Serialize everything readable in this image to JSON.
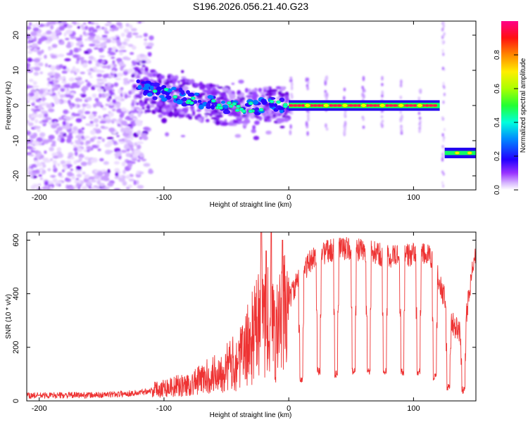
{
  "figure": {
    "title": "S196.2026.056.21.40.G23"
  },
  "chart_data": [
    {
      "type": "heatmap",
      "panel": "top",
      "title": "S196.2026.056.21.40.G23",
      "xlabel": "Height of straight line (km)",
      "ylabel": "Frequency (Hz)",
      "xlim": [
        -210,
        150
      ],
      "ylim": [
        -24,
        24
      ],
      "xticks": [
        -200,
        -100,
        0,
        100
      ],
      "yticks": [
        -20,
        -10,
        0,
        10,
        20
      ],
      "colorbar": {
        "label": "Normalized spectral amplitude",
        "range": [
          0.0,
          1.0
        ],
        "ticks": [
          0.0,
          0.2,
          0.4,
          0.6,
          0.8
        ],
        "colormap": [
          "#ffffff",
          "#e6ccff",
          "#b266ff",
          "#7a00ff",
          "#2200ff",
          "#0099ff",
          "#00ffcc",
          "#33ff33",
          "#ccff00",
          "#ffcc00",
          "#ff6600",
          "#ff0033",
          "#ff0077"
        ]
      },
      "ridge": [
        {
          "x": -120,
          "y": 5
        },
        {
          "x": -100,
          "y": 3.5
        },
        {
          "x": -80,
          "y": 2
        },
        {
          "x": -60,
          "y": 0.5
        },
        {
          "x": -40,
          "y": -1
        },
        {
          "x": -20,
          "y": 0
        },
        {
          "x": 0,
          "y": 0.5
        },
        {
          "x": 120,
          "y": 0
        },
        {
          "x": 125,
          "y": -13.5
        },
        {
          "x": 150,
          "y": -13.5
        }
      ],
      "tone_peaks_x": [
        15,
        30,
        45,
        60,
        75,
        90,
        105
      ],
      "tone_peaks_post_jump_x": [
        135,
        145
      ]
    },
    {
      "type": "line",
      "panel": "bottom",
      "xlabel": "Height of straight line (km)",
      "ylabel": "SNR (10 * v/v)",
      "xlim": [
        -210,
        150
      ],
      "ylim": [
        0,
        630
      ],
      "xticks": [
        -200,
        -100,
        0,
        100
      ],
      "yticks": [
        0,
        200,
        400,
        600
      ],
      "series": [
        {
          "name": "SNR",
          "color": "#ee3333",
          "envelope": [
            {
              "x": -210,
              "y": 20
            },
            {
              "x": -150,
              "y": 22
            },
            {
              "x": -120,
              "y": 30
            },
            {
              "x": -100,
              "y": 50
            },
            {
              "x": -80,
              "y": 60
            },
            {
              "x": -60,
              "y": 100
            },
            {
              "x": -40,
              "y": 150
            },
            {
              "x": -30,
              "y": 230
            },
            {
              "x": -20,
              "y": 320
            },
            {
              "x": -10,
              "y": 250
            },
            {
              "x": 0,
              "y": 380
            },
            {
              "x": 10,
              "y": 470
            },
            {
              "x": 20,
              "y": 540
            },
            {
              "x": 40,
              "y": 570
            },
            {
              "x": 60,
              "y": 560
            },
            {
              "x": 80,
              "y": 540
            },
            {
              "x": 100,
              "y": 545
            },
            {
              "x": 110,
              "y": 545
            },
            {
              "x": 115,
              "y": 530
            },
            {
              "x": 120,
              "y": 460
            },
            {
              "x": 130,
              "y": 300
            },
            {
              "x": 140,
              "y": 230
            },
            {
              "x": 145,
              "y": 420
            },
            {
              "x": 150,
              "y": 560
            }
          ],
          "dips": [
            {
              "x": 10,
              "y": 80
            },
            {
              "x": 24,
              "y": 110
            },
            {
              "x": 38,
              "y": 100
            },
            {
              "x": 52,
              "y": 110
            },
            {
              "x": 64,
              "y": 110
            },
            {
              "x": 77,
              "y": 110
            },
            {
              "x": 91,
              "y": 110
            },
            {
              "x": 104,
              "y": 110
            },
            {
              "x": 117,
              "y": 90
            },
            {
              "x": 128,
              "y": 50
            },
            {
              "x": 140,
              "y": 40
            }
          ],
          "spikes": [
            {
              "x": -22,
              "y": 630
            },
            {
              "x": -18,
              "y": 560
            },
            {
              "x": -14,
              "y": 630
            },
            {
              "x": -5,
              "y": 600
            }
          ]
        }
      ]
    }
  ]
}
